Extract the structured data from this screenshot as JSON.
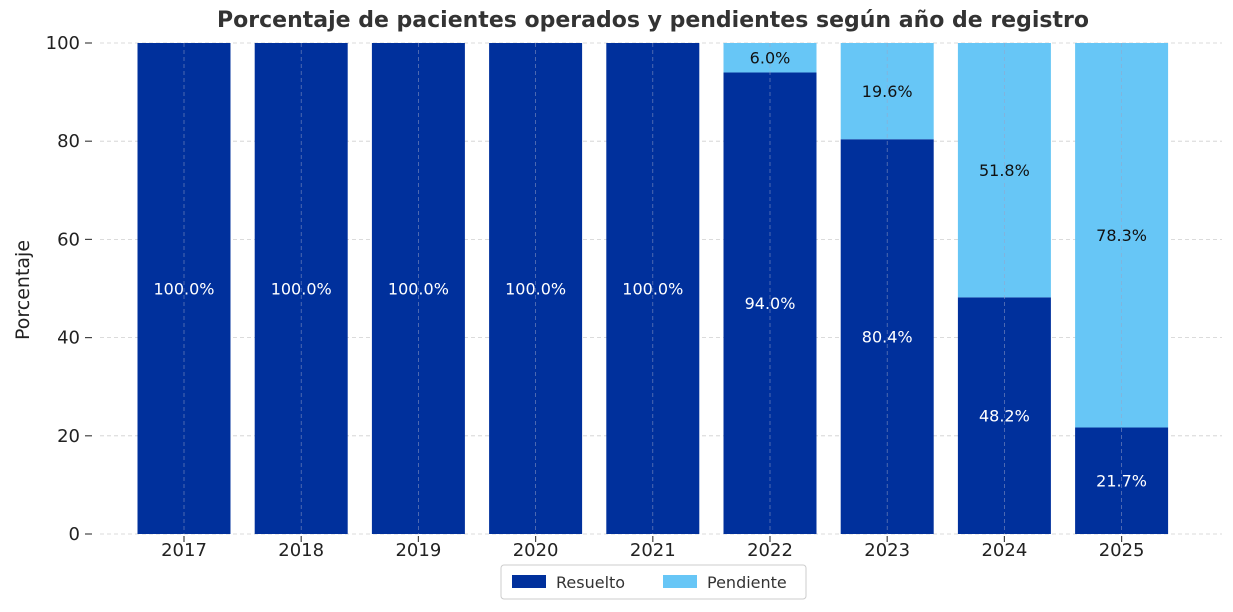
{
  "chart_data": {
    "type": "bar",
    "stacked": true,
    "title": "Porcentaje de pacientes operados y pendientes según año de registro",
    "xlabel": "",
    "ylabel": "Porcentaje",
    "ylim": [
      0,
      100
    ],
    "yticks": [
      0,
      20,
      40,
      60,
      80,
      100
    ],
    "grid": true,
    "legend_position": "bottom-center",
    "categories": [
      "2017",
      "2018",
      "2019",
      "2020",
      "2021",
      "2022",
      "2023",
      "2024",
      "2025"
    ],
    "series": [
      {
        "name": "Resuelto",
        "color": "#00309c",
        "label_color": "#ffffff",
        "values": [
          100.0,
          100.0,
          100.0,
          100.0,
          100.0,
          94.0,
          80.4,
          48.2,
          21.7
        ],
        "labels": [
          "100.0%",
          "100.0%",
          "100.0%",
          "100.0%",
          "100.0%",
          "94.0%",
          "80.4%",
          "48.2%",
          "21.7%"
        ]
      },
      {
        "name": "Pendiente",
        "color": "#67c6f6",
        "label_color": "#111111",
        "values": [
          0,
          0,
          0,
          0,
          0,
          6.0,
          19.6,
          51.8,
          78.3
        ],
        "labels": [
          "",
          "",
          "",
          "",
          "",
          "6.0%",
          "19.6%",
          "51.8%",
          "78.3%"
        ]
      }
    ]
  }
}
